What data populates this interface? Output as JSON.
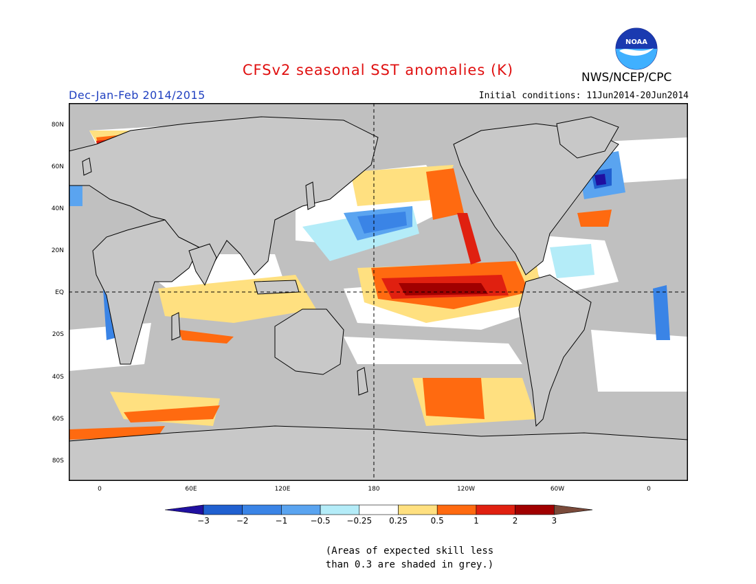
{
  "header": {
    "title": "CFSv2 seasonal SST anomalies (K)",
    "agency": "NWS/NCEP/CPC",
    "logo_text": "NOAA",
    "period": "Dec-Jan-Feb 2014/2015",
    "initial_conditions": "Initial conditions: 11Jun2014-20Jun2014"
  },
  "colors": {
    "title": "#e01010",
    "period": "#2040c0",
    "land": "#c8c8c8",
    "skill_grey": "#c0c0c0",
    "ocean_neutral": "#ffffff"
  },
  "map": {
    "lat_labels": [
      "80N",
      "60N",
      "40N",
      "20N",
      "EQ",
      "20S",
      "40S",
      "60S",
      "80S"
    ],
    "lon_labels": [
      "0",
      "60E",
      "120E",
      "180",
      "120W",
      "60W",
      "0"
    ]
  },
  "colorbar": {
    "labels": [
      "-3",
      "-2",
      "-1",
      "-0.5",
      "-0.25",
      "0.25",
      "0.5",
      "1",
      "2",
      "3"
    ],
    "colors": [
      "#2010a0",
      "#2060d0",
      "#3a84e6",
      "#5aa4f0",
      "#b4ecf8",
      "#ffffff",
      "#ffe080",
      "#ff6a10",
      "#e02010",
      "#a00000",
      "#7a4a3a"
    ]
  },
  "note": {
    "line1": "(Areas of expected skill less",
    "line2": "than 0.3 are shaded in grey.)"
  }
}
